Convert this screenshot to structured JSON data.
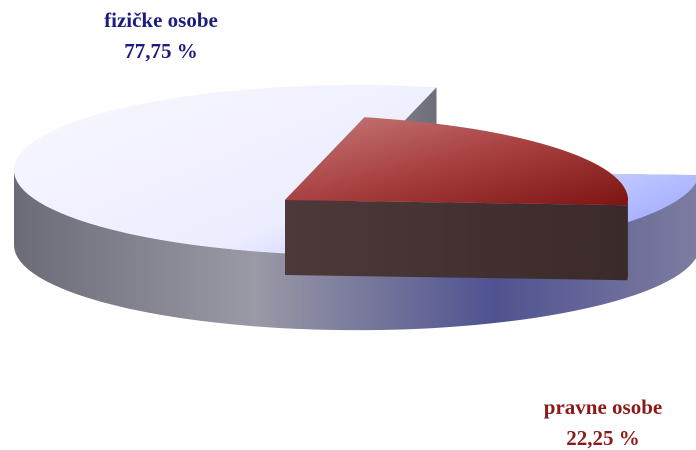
{
  "chart_data": {
    "type": "pie",
    "title": "",
    "slices": [
      {
        "name": "fizičke osobe",
        "value": 77.75,
        "value_label": "77,75 %",
        "color": "#aab3ff",
        "label_color": "#1c1c80"
      },
      {
        "name": "pravne osobe",
        "value": 22.25,
        "value_label": "22,25 %",
        "color": "#a22a2a",
        "label_color": "#8b1a1a"
      }
    ],
    "style": "3d-exploded",
    "legend": "none"
  }
}
